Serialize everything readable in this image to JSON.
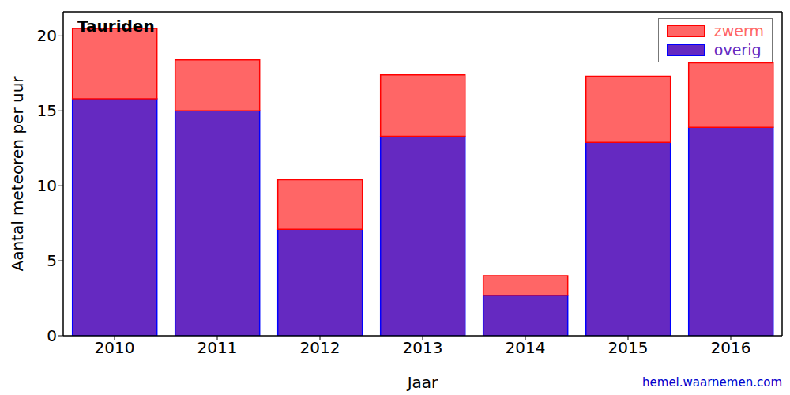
{
  "chart_data": {
    "type": "bar",
    "title": "Tauriden",
    "x_label": "Jaar",
    "y_label": "Aantal meteoren per uur",
    "annotation": "hemel.waarnemen.com",
    "categories": [
      "2010",
      "2011",
      "2012",
      "2013",
      "2014",
      "2015",
      "2016"
    ],
    "series": [
      {
        "name": "overig",
        "color": "#6529c1",
        "values": [
          15.8,
          15.0,
          7.1,
          13.3,
          2.7,
          12.9,
          13.9
        ]
      },
      {
        "name": "zwerm",
        "color": "#ff6666",
        "values": [
          4.7,
          3.4,
          3.3,
          4.1,
          1.3,
          4.4,
          4.3
        ]
      }
    ],
    "ylim": [
      0,
      21.6
    ],
    "yticks": [
      0,
      5,
      10,
      15,
      20
    ],
    "stacked": true,
    "legend": "upper right"
  }
}
